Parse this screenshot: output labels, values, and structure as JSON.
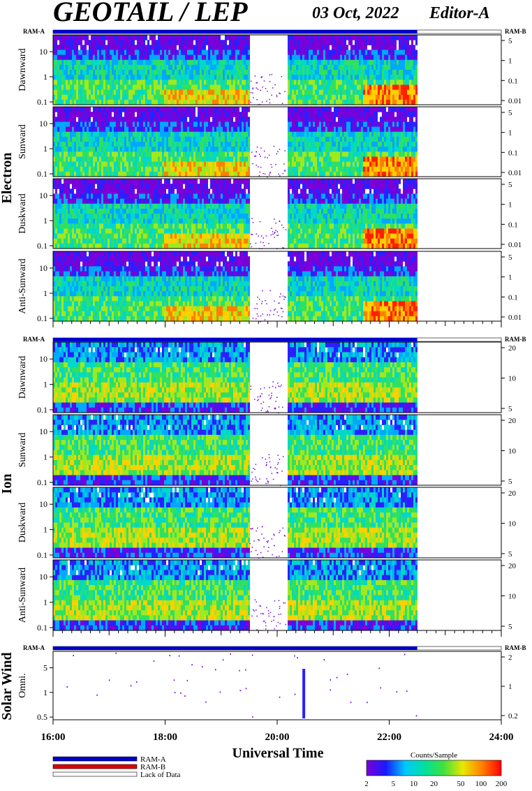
{
  "header": {
    "title": "GEOTAIL / LEP",
    "date": "03 Oct, 2022",
    "editor": "Editor-A"
  },
  "chart_data": {
    "type": "heatmap",
    "xlabel": "Universal Time",
    "x_ticks": [
      "16:00",
      "18:00",
      "20:00",
      "22:00",
      "24:00"
    ],
    "xlim_hours": [
      16,
      24
    ],
    "mode_bar": {
      "left": "RAM-A",
      "right": "RAM-B"
    },
    "data_end_hour": 22.5,
    "gap_hours": [
      19.5,
      20.15
    ],
    "groups": [
      {
        "name": "Electron",
        "panels": [
          {
            "label": "Dawnward",
            "left_ticks": [
              "10",
              "1",
              "0.1"
            ],
            "right_ticks": [
              "5",
              "1",
              "0.1",
              "0.01"
            ]
          },
          {
            "label": "Sunward",
            "left_ticks": [
              "10",
              "1",
              "0.1"
            ],
            "right_ticks": [
              "5",
              "1",
              "0.1",
              "0.01"
            ]
          },
          {
            "label": "Duskward",
            "left_ticks": [
              "10",
              "1",
              "0.1"
            ],
            "right_ticks": [
              "5",
              "1",
              "0.1",
              "0.01"
            ]
          },
          {
            "label": "Anti-Sunward",
            "left_ticks": [
              "10",
              "1",
              "0.1"
            ],
            "right_ticks": [
              "5",
              "1",
              "0.1",
              "0.01"
            ]
          }
        ]
      },
      {
        "name": "Ion",
        "panels": [
          {
            "label": "Dawnward",
            "left_ticks": [
              "10",
              "1",
              "0.1"
            ],
            "right_ticks": [
              "20",
              "10",
              "5"
            ]
          },
          {
            "label": "Sunward",
            "left_ticks": [
              "10",
              "1",
              "0.1"
            ],
            "right_ticks": [
              "20",
              "10",
              "5"
            ]
          },
          {
            "label": "Duskward",
            "left_ticks": [
              "10",
              "1",
              "0.1"
            ],
            "right_ticks": [
              "20",
              "10",
              "5"
            ]
          },
          {
            "label": "Anti-Sunward",
            "left_ticks": [
              "10",
              "1",
              "0.1"
            ],
            "right_ticks": [
              "20",
              "10",
              "5"
            ]
          }
        ]
      },
      {
        "name": "Solar Wind",
        "panels": [
          {
            "label": "Omni.",
            "left_ticks": [
              "5",
              "1",
              "0.5"
            ],
            "right_ticks": [
              "2",
              "1",
              "0.2"
            ]
          }
        ]
      }
    ],
    "legend": {
      "items": [
        {
          "label": "RAM-A",
          "color": "#0000cc"
        },
        {
          "label": "RAM-B",
          "color": "#dd0000"
        },
        {
          "label": "Lack of Data",
          "color": "#ffffff"
        }
      ]
    },
    "colorbar": {
      "title": "Counts/Sample",
      "ticks": [
        "2",
        "5",
        "10",
        "20",
        "50",
        "100",
        "200"
      ],
      "colors": [
        "#7a00d8",
        "#1a1aff",
        "#00c8ff",
        "#00e0a0",
        "#40e040",
        "#e8e800",
        "#ff8000",
        "#ff0000"
      ]
    }
  }
}
